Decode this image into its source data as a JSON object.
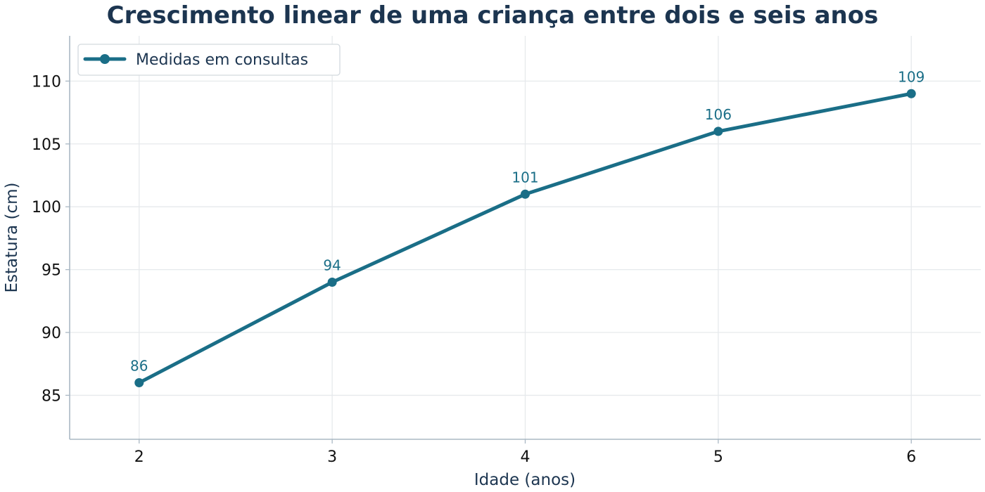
{
  "colors": {
    "series": "#1a6e87",
    "title": "#1c3550",
    "grid": "#e6e9ec",
    "spine": "#aab8c4"
  },
  "chart_data": {
    "type": "line",
    "title": "Crescimento linear de uma criança entre dois e seis anos",
    "xlabel": "Idade (anos)",
    "ylabel": "Estatura (cm)",
    "x": [
      2,
      3,
      4,
      5,
      6
    ],
    "xticks": [
      "2",
      "3",
      "4",
      "5",
      "6"
    ],
    "yticks": [
      "85",
      "90",
      "95",
      "100",
      "105",
      "110"
    ],
    "xlim": [
      1.64,
      6.36
    ],
    "ylim": [
      81.5,
      113.6
    ],
    "grid": true,
    "legend_position": "top-left",
    "series": [
      {
        "name": "Medidas em consultas",
        "values": [
          86,
          94,
          101,
          106,
          109
        ],
        "labels": [
          "86",
          "94",
          "101",
          "106",
          "109"
        ],
        "marker": "circle"
      }
    ]
  }
}
